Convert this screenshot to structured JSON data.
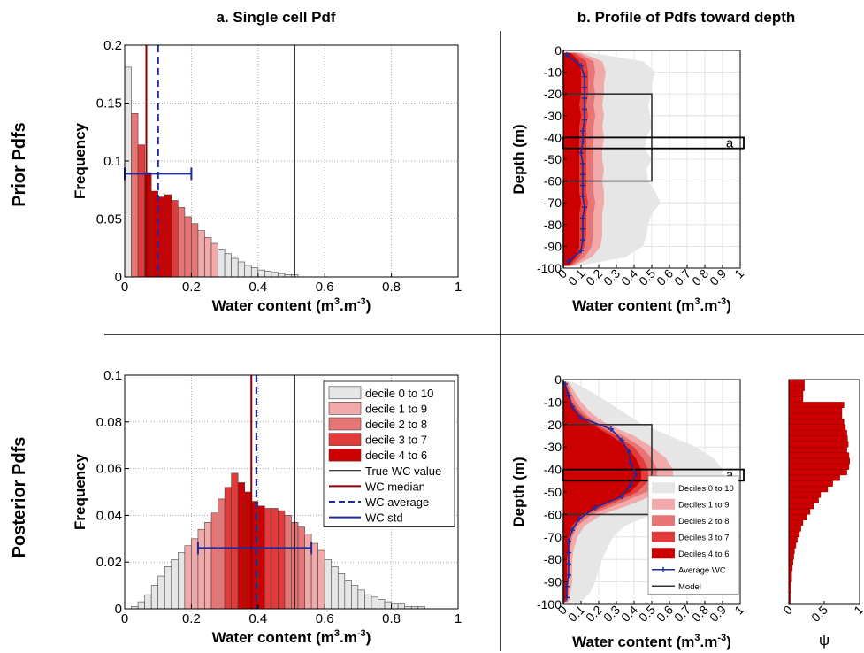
{
  "figure": {
    "col_titles": [
      "a. Single cell Pdf",
      "b. Profile of Pdfs toward depth"
    ],
    "row_titles": [
      "Prior Pdfs",
      "Posterior Pdfs"
    ]
  },
  "colors": {
    "decile_0_10": "#e6e6e6",
    "decile_1_9": "#f2a9a9",
    "decile_2_8": "#e87575",
    "decile_3_7": "#e23b3b",
    "decile_4_6": "#cc0000",
    "median": "#8b0000",
    "average": "#1f2a9c",
    "true_value": "#000000",
    "model": "#333333"
  },
  "chart_data": [
    {
      "id": "prior_hist",
      "type": "bar",
      "xlabel": "Water content (m3.m-3)",
      "ylabel": "Frequency",
      "xlim": [
        0,
        1
      ],
      "ylim": [
        0,
        0.2
      ],
      "xticks": [
        "0",
        "0.2",
        "0.4",
        "0.6",
        "0.8",
        "1"
      ],
      "yticks": [
        "0",
        "0.05",
        "0.1",
        "0.15",
        "0.2"
      ],
      "bin_width": 0.02,
      "bin_start": 0,
      "values": [
        0.181,
        0.141,
        0.114,
        0.09,
        0.074,
        0.069,
        0.071,
        0.066,
        0.06,
        0.052,
        0.046,
        0.04,
        0.034,
        0.029,
        0.024,
        0.02,
        0.016,
        0.013,
        0.01,
        0.008,
        0.006,
        0.005,
        0.004,
        0.003,
        0.002,
        0.002
      ],
      "true_wc": 0.51,
      "median": 0.065,
      "average": 0.1,
      "std_range": [
        0,
        0.2
      ],
      "std_y": 0.089,
      "grid": true
    },
    {
      "id": "posterior_hist",
      "type": "bar",
      "xlabel": "Water content (m3.m-3)",
      "ylabel": "Frequency",
      "xlim": [
        0,
        1
      ],
      "ylim": [
        0,
        0.1
      ],
      "xticks": [
        "0",
        "0.2",
        "0.4",
        "0.6",
        "0.8",
        "1"
      ],
      "yticks": [
        "0",
        "0.02",
        "0.04",
        "0.06",
        "0.08",
        "0.1"
      ],
      "bin_width": 0.02,
      "bin_start": 0.02,
      "values": [
        0.001,
        0.003,
        0.006,
        0.01,
        0.014,
        0.018,
        0.021,
        0.024,
        0.027,
        0.03,
        0.034,
        0.037,
        0.041,
        0.047,
        0.052,
        0.058,
        0.054,
        0.05,
        0.046,
        0.044,
        0.043,
        0.043,
        0.042,
        0.04,
        0.037,
        0.035,
        0.032,
        0.028,
        0.025,
        0.021,
        0.018,
        0.015,
        0.012,
        0.01,
        0.008,
        0.006,
        0.005,
        0.004,
        0.003,
        0.002,
        0.002,
        0.001,
        0.001,
        0.001
      ],
      "true_wc": 0.51,
      "median": 0.38,
      "average": 0.395,
      "std_range": [
        0.22,
        0.56
      ],
      "std_y": 0.026,
      "grid": true,
      "legend_position": "top-right",
      "legend": [
        {
          "label": "decile 0 to 10",
          "kind": "patch",
          "color": "#e6e6e6"
        },
        {
          "label": "decile 1 to 9",
          "kind": "patch",
          "color": "#f2a9a9"
        },
        {
          "label": "decile 2 to 8",
          "kind": "patch",
          "color": "#e87575"
        },
        {
          "label": "decile 3 to 7",
          "kind": "patch",
          "color": "#e23b3b"
        },
        {
          "label": "decile 4 to 6",
          "kind": "patch",
          "color": "#cc0000"
        },
        {
          "label": "True WC value",
          "kind": "line",
          "color": "#000000"
        },
        {
          "label": "WC median",
          "kind": "line",
          "color": "#8b0000"
        },
        {
          "label": "WC average",
          "kind": "dash",
          "color": "#1f2a9c"
        },
        {
          "label": "WC std",
          "kind": "line",
          "color": "#1f2a9c"
        }
      ]
    },
    {
      "id": "prior_profile",
      "type": "area",
      "xlabel": "Water content (m3.m-3)",
      "ylabel": "Depth (m)",
      "xlim": [
        0,
        1
      ],
      "ylim": [
        -100,
        0
      ],
      "xticks": [
        "0",
        "0.1",
        "0.2",
        "0.3",
        "0.4",
        "0.5",
        "0.6",
        "0.7",
        "0.8",
        "0.9",
        "1"
      ],
      "yticks": [
        "0",
        "-10",
        "-20",
        "-30",
        "-40",
        "-50",
        "-60",
        "-70",
        "-80",
        "-90",
        "-100"
      ],
      "depth": [
        -1,
        -5,
        -10,
        -15,
        -20,
        -25,
        -30,
        -35,
        -40,
        -45,
        -50,
        -55,
        -60,
        -65,
        -70,
        -75,
        -80,
        -85,
        -90,
        -95,
        -99
      ],
      "d0_10": [
        0.15,
        0.45,
        0.52,
        0.5,
        0.5,
        0.48,
        0.49,
        0.5,
        0.47,
        0.46,
        0.5,
        0.47,
        0.48,
        0.52,
        0.55,
        0.5,
        0.48,
        0.47,
        0.45,
        0.35,
        0.08
      ],
      "d1_9": [
        0.1,
        0.22,
        0.24,
        0.23,
        0.23,
        0.22,
        0.23,
        0.22,
        0.23,
        0.22,
        0.22,
        0.23,
        0.22,
        0.23,
        0.23,
        0.22,
        0.22,
        0.22,
        0.21,
        0.16,
        0.06
      ],
      "d2_8": [
        0.08,
        0.17,
        0.18,
        0.17,
        0.18,
        0.17,
        0.18,
        0.17,
        0.17,
        0.17,
        0.17,
        0.17,
        0.17,
        0.17,
        0.18,
        0.17,
        0.17,
        0.17,
        0.16,
        0.12,
        0.05
      ],
      "d3_7": [
        0.06,
        0.13,
        0.14,
        0.14,
        0.14,
        0.13,
        0.14,
        0.13,
        0.13,
        0.13,
        0.13,
        0.13,
        0.13,
        0.13,
        0.14,
        0.13,
        0.13,
        0.13,
        0.12,
        0.09,
        0.04
      ],
      "d4_6": [
        0.04,
        0.09,
        0.1,
        0.1,
        0.1,
        0.09,
        0.1,
        0.09,
        0.09,
        0.09,
        0.09,
        0.09,
        0.09,
        0.09,
        0.1,
        0.09,
        0.09,
        0.09,
        0.09,
        0.07,
        0.03
      ],
      "avg_depth": [
        -2,
        -7,
        -12,
        -17,
        -22,
        -27,
        -32,
        -37,
        -42,
        -47,
        -52,
        -57,
        -62,
        -67,
        -72,
        -77,
        -82,
        -87,
        -92,
        -97
      ],
      "avg_wc": [
        0.02,
        0.1,
        0.12,
        0.12,
        0.12,
        0.12,
        0.12,
        0.11,
        0.11,
        0.1,
        0.11,
        0.11,
        0.11,
        0.11,
        0.12,
        0.11,
        0.11,
        0.11,
        0.1,
        0.03
      ],
      "model_outline": [
        [
          0,
          0
        ],
        [
          0,
          -20
        ],
        [
          0.5,
          -20
        ],
        [
          0.5,
          -60
        ],
        [
          0,
          -60
        ],
        [
          0,
          -100
        ]
      ],
      "cell_box": [
        -40,
        -45
      ],
      "cell_box_label": "a",
      "grid": true
    },
    {
      "id": "posterior_profile",
      "type": "area",
      "xlabel": "Water content (m3.m-3)",
      "ylabel": "Depth (m)",
      "xlim": [
        0,
        1
      ],
      "ylim": [
        -100,
        0
      ],
      "xticks": [
        "0",
        "0.1",
        "0.2",
        "0.3",
        "0.4",
        "0.5",
        "0.6",
        "0.7",
        "0.8",
        "0.9",
        "1"
      ],
      "yticks": [
        "0",
        "-10",
        "-20",
        "-30",
        "-40",
        "-50",
        "-60",
        "-70",
        "-80",
        "-90",
        "-100"
      ],
      "depth": [
        -1,
        -5,
        -10,
        -15,
        -20,
        -25,
        -30,
        -35,
        -40,
        -45,
        -50,
        -55,
        -60,
        -65,
        -70,
        -75,
        -80,
        -85,
        -90,
        -95,
        -99
      ],
      "d0_10": [
        0.05,
        0.15,
        0.25,
        0.35,
        0.45,
        0.6,
        0.75,
        0.85,
        0.9,
        0.92,
        0.85,
        0.7,
        0.5,
        0.35,
        0.28,
        0.25,
        0.22,
        0.2,
        0.18,
        0.15,
        0.1
      ],
      "d1_9": [
        0.03,
        0.06,
        0.1,
        0.16,
        0.25,
        0.4,
        0.5,
        0.58,
        0.62,
        0.62,
        0.55,
        0.4,
        0.22,
        0.12,
        0.08,
        0.06,
        0.05,
        0.05,
        0.05,
        0.04,
        0.03
      ],
      "d2_8": [
        0.02,
        0.04,
        0.07,
        0.12,
        0.2,
        0.34,
        0.44,
        0.5,
        0.53,
        0.53,
        0.47,
        0.32,
        0.16,
        0.08,
        0.05,
        0.04,
        0.04,
        0.03,
        0.03,
        0.03,
        0.02
      ],
      "d3_7": [
        0.01,
        0.03,
        0.05,
        0.1,
        0.18,
        0.3,
        0.4,
        0.45,
        0.48,
        0.48,
        0.42,
        0.28,
        0.13,
        0.06,
        0.04,
        0.03,
        0.03,
        0.03,
        0.02,
        0.02,
        0.02
      ],
      "d4_6": [
        0.01,
        0.02,
        0.04,
        0.08,
        0.16,
        0.27,
        0.36,
        0.41,
        0.44,
        0.44,
        0.38,
        0.24,
        0.11,
        0.05,
        0.03,
        0.03,
        0.02,
        0.02,
        0.02,
        0.02,
        0.01
      ],
      "avg_depth": [
        -2,
        -7,
        -12,
        -17,
        -22,
        -27,
        -32,
        -37,
        -42,
        -47,
        -52,
        -57,
        -62,
        -67,
        -72,
        -77,
        -82,
        -87,
        -92,
        -97
      ],
      "avg_wc": [
        0.01,
        0.03,
        0.05,
        0.1,
        0.27,
        0.33,
        0.37,
        0.38,
        0.41,
        0.38,
        0.33,
        0.18,
        0.09,
        0.05,
        0.03,
        0.03,
        0.03,
        0.03,
        0.02,
        0.02
      ],
      "model_outline": [
        [
          0,
          0
        ],
        [
          0,
          -20
        ],
        [
          0.5,
          -20
        ],
        [
          0.5,
          -60
        ],
        [
          0,
          -60
        ],
        [
          0,
          -100
        ]
      ],
      "cell_box": [
        -40,
        -45
      ],
      "cell_box_label": "a",
      "grid": true,
      "legend_position": "bottom-right",
      "legend": [
        {
          "label": "Deciles 0 to 10",
          "kind": "patch",
          "color": "#e6e6e6"
        },
        {
          "label": "Deciles 1 to 9",
          "kind": "patch",
          "color": "#f2a9a9"
        },
        {
          "label": "Deciles 2 to 8",
          "kind": "patch",
          "color": "#e87575"
        },
        {
          "label": "Deciles 3 to 7",
          "kind": "patch",
          "color": "#e23b3b"
        },
        {
          "label": "Deciles 4 to 6",
          "kind": "patch",
          "color": "#cc0000"
        },
        {
          "label": "Average WC",
          "kind": "marker-line",
          "color": "#1f2a9c"
        },
        {
          "label": "Model",
          "kind": "line",
          "color": "#333333"
        }
      ]
    },
    {
      "id": "psi_hist",
      "type": "bar",
      "orientation": "horizontal",
      "xlabel": "ψ",
      "xlim": [
        0,
        1
      ],
      "ylim": [
        -100,
        0
      ],
      "xticks": [
        "0",
        "0.5",
        "1"
      ],
      "bin_width": 2.5,
      "depth_start": 0,
      "values": [
        0.22,
        0.22,
        0.2,
        0.2,
        0.78,
        0.75,
        0.75,
        0.78,
        0.8,
        0.82,
        0.83,
        0.84,
        0.82,
        0.85,
        0.86,
        0.85,
        0.82,
        0.72,
        0.62,
        0.55,
        0.45,
        0.42,
        0.35,
        0.3,
        0.25,
        0.2,
        0.17,
        0.15,
        0.12,
        0.1,
        0.08,
        0.07,
        0.06,
        0.05,
        0.04,
        0.04,
        0.03,
        0.03,
        0.02,
        0.02
      ]
    }
  ]
}
